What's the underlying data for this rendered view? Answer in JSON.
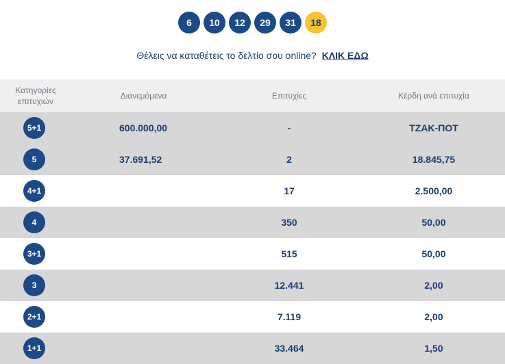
{
  "draw": {
    "numbers": [
      "6",
      "10",
      "12",
      "29",
      "31"
    ],
    "bonus": "18"
  },
  "cta": {
    "text": "Θέλεις να καταθέτεις το δελτίο σου online?",
    "link": "ΚΛΙΚ ΕΔΩ"
  },
  "table": {
    "headers": {
      "category": "Κατηγορίες επιτυχιών",
      "distributed": "Διανεμόμενα",
      "winners": "Επιτυχίες",
      "prize": "Κέρδη ανά επιτυχία"
    },
    "rows": [
      {
        "category": "5+1",
        "distributed": "600.000,00",
        "winners": "-",
        "prize": "ΤΖΑΚ-ΠΟΤ"
      },
      {
        "category": "5",
        "distributed": "37.691,52",
        "winners": "2",
        "prize": "18.845,75"
      },
      {
        "category": "4+1",
        "distributed": "",
        "winners": "17",
        "prize": "2.500,00"
      },
      {
        "category": "4",
        "distributed": "",
        "winners": "350",
        "prize": "50,00"
      },
      {
        "category": "3+1",
        "distributed": "",
        "winners": "515",
        "prize": "50,00"
      },
      {
        "category": "3",
        "distributed": "",
        "winners": "12.441",
        "prize": "2,00"
      },
      {
        "category": "2+1",
        "distributed": "",
        "winners": "7.119",
        "prize": "2,00"
      },
      {
        "category": "1+1",
        "distributed": "",
        "winners": "33.464",
        "prize": "1,50"
      }
    ]
  },
  "colors": {
    "ball": "#1c4a86",
    "bonus_ball": "#f6c42f",
    "text_dark": "#1c3c6d",
    "header_bg": "#efefef",
    "row_alt_bg": "#d7d7d7"
  }
}
